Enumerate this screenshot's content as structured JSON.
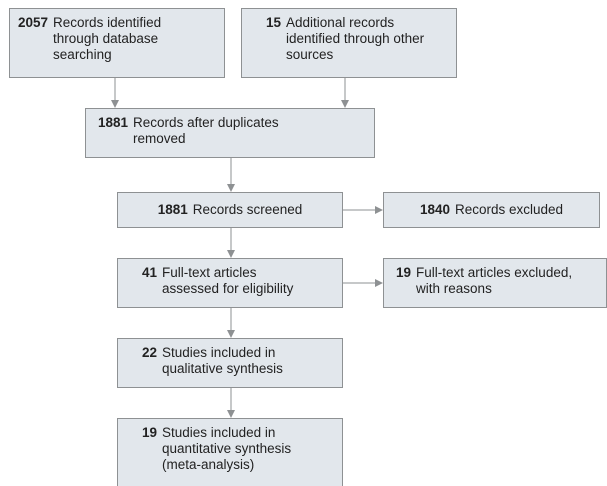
{
  "nodes": [
    {
      "count": 2057,
      "label": "Records identified through database searching"
    },
    {
      "count": 15,
      "label": "Additional records identified through other sources"
    },
    {
      "count": 1881,
      "label": "Records after duplicates removed"
    },
    {
      "count": 1881,
      "label": "Records screened"
    },
    {
      "count": 1840,
      "label": "Records excluded"
    },
    {
      "count": 41,
      "label": "Full-text articles assessed for eligibility"
    },
    {
      "count": 19,
      "label": "Full-text articles excluded, with reasons"
    },
    {
      "count": 22,
      "label": "Studies included in qualitative synthesis"
    },
    {
      "count": 19,
      "label": "Studies included in quantitative synthesis (meta-analysis)"
    }
  ]
}
